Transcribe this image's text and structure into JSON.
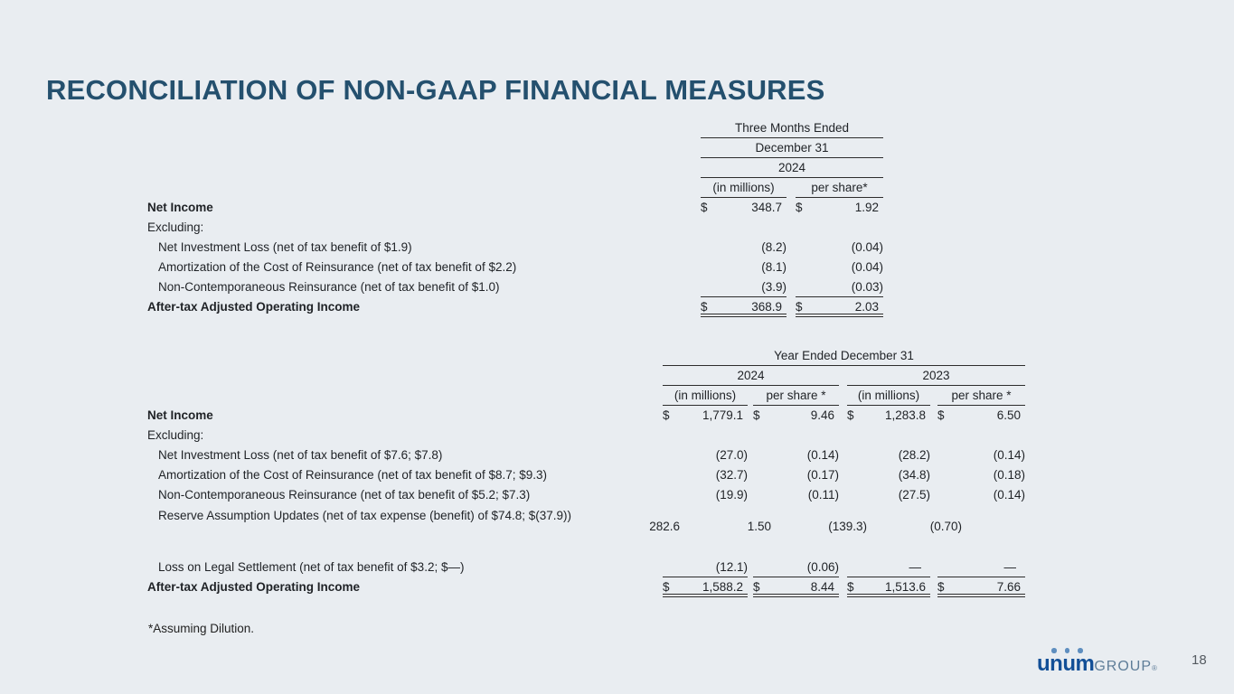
{
  "slide": {
    "title": "RECONCILIATION OF NON-GAAP FINANCIAL MEASURES",
    "footnote": "*Assuming Dilution.",
    "page_number": "18",
    "logo": {
      "brand": "unum",
      "suffix": "GROUP",
      "trademark": "®"
    },
    "colors": {
      "background": "#e9edf1",
      "title": "#24506e",
      "text": "#1f2226",
      "rule": "#2d2d2d",
      "logo_blue": "#124f97",
      "logo_dot": "#5e8ebf",
      "logo_gray": "#5e7d98"
    }
  },
  "quarter_table": {
    "period": "Three Months Ended",
    "date": "December 31",
    "year": "2024",
    "columns": [
      "(in millions)",
      "per share*"
    ],
    "rows": [
      {
        "label": "Net Income",
        "cells": [
          {
            "d": "$",
            "v": "348.7"
          },
          {
            "d": "$",
            "v": "1.92"
          }
        ]
      },
      {
        "label": "Excluding:",
        "cells": [
          {},
          {}
        ]
      },
      {
        "label": "Net Investment Loss (net of tax benefit of $1.9)",
        "cells": [
          {
            "v": "(8.2)"
          },
          {
            "v": "(0.04)"
          }
        ]
      },
      {
        "label": "Amortization of the Cost of Reinsurance (net of tax benefit of $2.2)",
        "cells": [
          {
            "v": "(8.1)"
          },
          {
            "v": "(0.04)"
          }
        ]
      },
      {
        "label": "Non-Contemporaneous Reinsurance (net of tax benefit of $1.0)",
        "cells": [
          {
            "v": "(3.9)"
          },
          {
            "v": "(0.03)"
          }
        ]
      },
      {
        "label": "After-tax Adjusted Operating Income",
        "cells": [
          {
            "d": "$",
            "v": "368.9"
          },
          {
            "d": "$",
            "v": "2.03"
          }
        ]
      }
    ]
  },
  "annual_table": {
    "period": "Year Ended December 31",
    "year_groups": [
      "2024",
      "2023"
    ],
    "columns": [
      "(in millions)",
      "per share *",
      "(in millions)",
      "per share *"
    ],
    "rows": [
      {
        "label": "Net Income",
        "cells": [
          {
            "d": "$",
            "v": "1,779.1"
          },
          {
            "d": "$",
            "v": "9.46"
          },
          {
            "d": "$",
            "v": "1,283.8"
          },
          {
            "d": "$",
            "v": "6.50"
          }
        ]
      },
      {
        "label": "Excluding:",
        "cells": [
          {},
          {},
          {},
          {}
        ]
      },
      {
        "label": "Net Investment Loss (net of tax benefit of $7.6; $7.8)",
        "cells": [
          {
            "v": "(27.0)"
          },
          {
            "v": "(0.14)"
          },
          {
            "v": "(28.2)"
          },
          {
            "v": "(0.14)"
          }
        ]
      },
      {
        "label": "Amortization of the Cost of Reinsurance (net of tax benefit of $8.7; $9.3)",
        "cells": [
          {
            "v": "(32.7)"
          },
          {
            "v": "(0.17)"
          },
          {
            "v": "(34.8)"
          },
          {
            "v": "(0.18)"
          }
        ]
      },
      {
        "label": "Non-Contemporaneous Reinsurance (net of tax benefit of $5.2; $7.3)",
        "cells": [
          {
            "v": "(19.9)"
          },
          {
            "v": "(0.11)"
          },
          {
            "v": "(27.5)"
          },
          {
            "v": "(0.14)"
          }
        ]
      },
      {
        "label": "Reserve Assumption Updates (net of tax expense (benefit) of $74.8; $(37.9))",
        "cells": [
          {
            "v": "282.6"
          },
          {
            "v": "1.50"
          },
          {
            "v": "(139.3)"
          },
          {
            "v": "(0.70)"
          }
        ]
      },
      {
        "label": "Loss on Legal Settlement (net of tax benefit of $3.2; $—)",
        "cells": [
          {
            "v": "(12.1)"
          },
          {
            "v": "(0.06)"
          },
          {
            "v": "—"
          },
          {
            "v": "—"
          }
        ]
      },
      {
        "label": "After-tax Adjusted Operating Income",
        "cells": [
          {
            "d": "$",
            "v": "1,588.2"
          },
          {
            "d": "$",
            "v": "8.44"
          },
          {
            "d": "$",
            "v": "1,513.6"
          },
          {
            "d": "$",
            "v": "7.66"
          }
        ]
      }
    ]
  }
}
